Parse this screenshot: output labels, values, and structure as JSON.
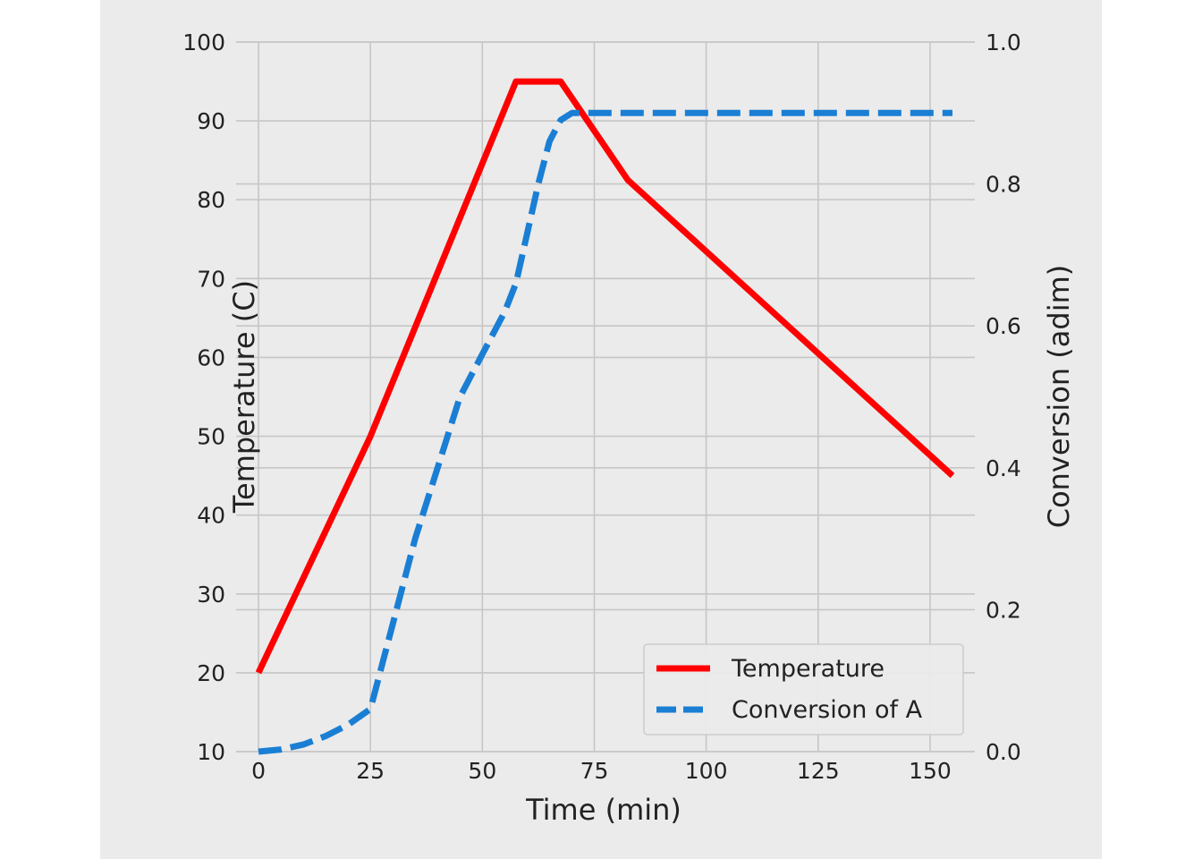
{
  "chart_data": {
    "type": "line",
    "xlabel": "Time (min)",
    "ylabel_left": "Temperature (C)",
    "ylabel_right": "Conversion (adim)",
    "xlim": [
      -5,
      160
    ],
    "ylim_left": [
      10,
      100
    ],
    "ylim_right": [
      0,
      1.0
    ],
    "x_ticks": [
      "0",
      "25",
      "50",
      "75",
      "100",
      "125",
      "150"
    ],
    "y_left_ticks": [
      "10",
      "20",
      "30",
      "40",
      "50",
      "60",
      "70",
      "80",
      "90",
      "100"
    ],
    "y_right_ticks": [
      "0.0",
      "0.2",
      "0.4",
      "0.6",
      "0.8",
      "1.0"
    ],
    "grid": true,
    "legend_position": "lower-right",
    "colors": {
      "temperature": "#ff0000",
      "conversion": "#1a7fd4",
      "left_label": "#ff0000"
    },
    "series": [
      {
        "name": "Temperature",
        "axis": "left",
        "style": "solid",
        "x": [
          0,
          25,
          57.5,
          67.5,
          82.5,
          155
        ],
        "y": [
          20,
          50,
          95,
          95,
          82.5,
          45
        ]
      },
      {
        "name": "Conversion of A",
        "axis": "right",
        "style": "dashed",
        "x": [
          0,
          5,
          10,
          15,
          20,
          25,
          30,
          35,
          40,
          45,
          50,
          55,
          57.5,
          60,
          62.5,
          65,
          67.5,
          70,
          75,
          100,
          125,
          155
        ],
        "y": [
          0.0,
          0.003,
          0.01,
          0.022,
          0.038,
          0.06,
          0.18,
          0.3,
          0.4,
          0.5,
          0.56,
          0.62,
          0.66,
          0.73,
          0.8,
          0.86,
          0.89,
          0.9,
          0.9,
          0.9,
          0.9,
          0.9
        ]
      }
    ]
  }
}
